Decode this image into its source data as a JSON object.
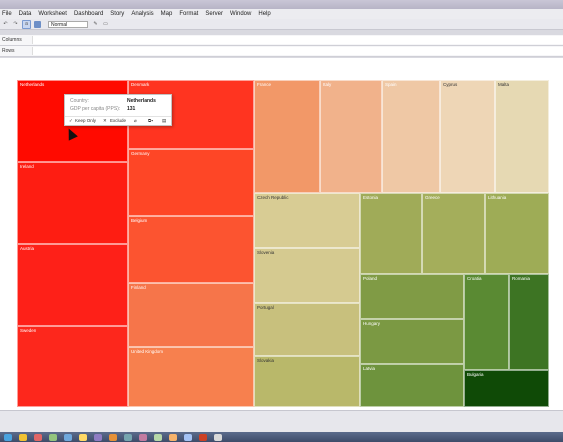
{
  "menu": {
    "items": [
      "File",
      "Data",
      "Worksheet",
      "Dashboard",
      "Story",
      "Analysis",
      "Map",
      "Format",
      "Server",
      "Window",
      "Help"
    ]
  },
  "toolbar": {
    "fit_select": "Normal"
  },
  "shelves": {
    "columns_label": "Columns",
    "rows_label": "Rows"
  },
  "treemap": {
    "measure": "GDP per capita (PPS)",
    "dimension": "Country",
    "tiles": [
      {
        "label": "Netherlands",
        "color": "#ff0a00"
      },
      {
        "label": "Ireland",
        "color": "#fe1d12"
      },
      {
        "label": "Austria",
        "color": "#fe2018"
      },
      {
        "label": "Sweden",
        "color": "#fd271c"
      },
      {
        "label": "Denmark",
        "color": "#ff3420"
      },
      {
        "label": "Germany",
        "color": "#fe4626"
      },
      {
        "label": "Belgium",
        "color": "#fc5430"
      },
      {
        "label": "Finland",
        "color": "#f6754a"
      },
      {
        "label": "United Kingdom",
        "color": "#f7804e"
      },
      {
        "label": "France",
        "color": "#f29868"
      },
      {
        "label": "Italy",
        "color": "#f1b28b"
      },
      {
        "label": "Spain",
        "color": "#efc8a5"
      },
      {
        "label": "Cyprus",
        "color": "#eed6b6"
      },
      {
        "label": "Malta",
        "color": "#e6d9b3"
      },
      {
        "label": "Czech Republic",
        "color": "#d8cc94"
      },
      {
        "label": "Slovenia",
        "color": "#d5ca90"
      },
      {
        "label": "Portugal",
        "color": "#c8c07d"
      },
      {
        "label": "Slovakia",
        "color": "#b9b86a"
      },
      {
        "label": "Estonia",
        "color": "#a0ab58"
      },
      {
        "label": "Greece",
        "color": "#a4ae5b"
      },
      {
        "label": "Lithuania",
        "color": "#9eac56"
      },
      {
        "label": "Poland",
        "color": "#809b45"
      },
      {
        "label": "Hungary",
        "color": "#7b9943"
      },
      {
        "label": "Latvia",
        "color": "#6e933d"
      },
      {
        "label": "Croatia",
        "color": "#5a8a33"
      },
      {
        "label": "Romania",
        "color": "#3d7423"
      },
      {
        "label": "Bulgaria",
        "color": "#0f4a06"
      }
    ]
  },
  "tooltip": {
    "field1_label": "Country:",
    "field1_value": "Netherlands",
    "field2_label": "GDP per capita (PPS):",
    "field2_value": "131",
    "keep_only": "Keep Only",
    "exclude": "Exclude"
  },
  "icons": [
    "undo-icon",
    "redo-icon",
    "abc-icon",
    "chart-type-icon",
    "pen-icon",
    "present-icon",
    "start-icon"
  ]
}
